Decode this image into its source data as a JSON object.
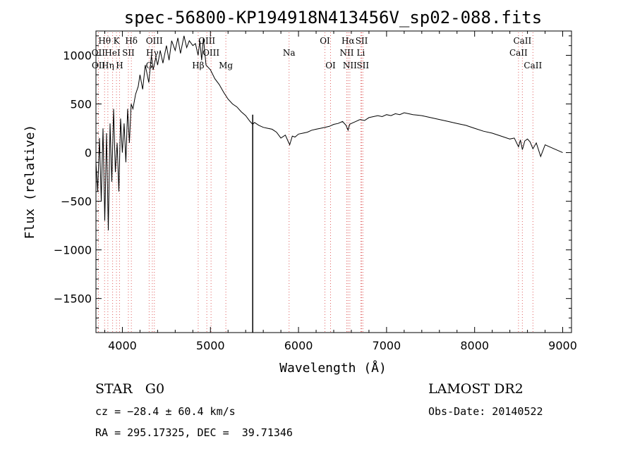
{
  "chart_data": {
    "type": "line",
    "title": "spec-56800-KP194918N413456V_sp02-088.fits",
    "xlabel": "Wavelength (Å)",
    "ylabel": "Flux (relative)",
    "xlim": [
      3700,
      9100
    ],
    "ylim": [
      -1850,
      1250
    ],
    "xticks": [
      4000,
      5000,
      6000,
      7000,
      8000,
      9000
    ],
    "yticks": [
      -1500,
      -1000,
      -500,
      0,
      500,
      1000
    ],
    "grid": false,
    "series": [
      {
        "x": [
          3700,
          3720,
          3740,
          3760,
          3780,
          3800,
          3820,
          3840,
          3860,
          3880,
          3900,
          3920,
          3940,
          3960,
          3980,
          4000,
          4020,
          4040,
          4060,
          4080,
          4100,
          4120,
          4150,
          4180,
          4200,
          4230,
          4260,
          4300,
          4330,
          4350,
          4380,
          4400,
          4430,
          4460,
          4500,
          4530,
          4560,
          4600,
          4630,
          4660,
          4700,
          4730,
          4760,
          4800,
          4830,
          4860,
          4880,
          4900,
          4920,
          4950,
          5000,
          5050,
          5100,
          5150,
          5200,
          5250,
          5300,
          5350,
          5400,
          5450,
          5480,
          5500,
          5550,
          5600,
          5650,
          5700,
          5750,
          5800,
          5850,
          5880,
          5900,
          5930,
          5960,
          6000,
          6050,
          6100,
          6150,
          6200,
          6250,
          6300,
          6350,
          6400,
          6450,
          6500,
          6540,
          6563,
          6580,
          6600,
          6650,
          6700,
          6750,
          6800,
          6850,
          6900,
          6950,
          7000,
          7050,
          7100,
          7150,
          7200,
          7250,
          7300,
          7350,
          7400,
          7450,
          7500,
          7600,
          7700,
          7800,
          7900,
          8000,
          8100,
          8200,
          8300,
          8400,
          8450,
          8498,
          8520,
          8542,
          8570,
          8600,
          8630,
          8662,
          8700,
          8750,
          8800,
          8850,
          8900,
          8950,
          9000
        ],
        "y": [
          -100,
          -400,
          150,
          -500,
          250,
          -700,
          200,
          -800,
          300,
          -300,
          450,
          -200,
          100,
          -400,
          350,
          0,
          300,
          -100,
          450,
          100,
          500,
          450,
          600,
          680,
          800,
          650,
          900,
          720,
          1000,
          850,
          980,
          900,
          1050,
          920,
          1100,
          950,
          1150,
          1050,
          1180,
          1020,
          1200,
          1080,
          1150,
          1100,
          1120,
          1000,
          1150,
          950,
          1180,
          900,
          850,
          760,
          700,
          620,
          550,
          500,
          470,
          420,
          380,
          320,
          290,
          310,
          280,
          260,
          250,
          240,
          210,
          150,
          180,
          120,
          80,
          170,
          160,
          190,
          200,
          210,
          230,
          240,
          250,
          260,
          270,
          290,
          300,
          320,
          280,
          230,
          290,
          300,
          320,
          340,
          330,
          360,
          370,
          380,
          370,
          390,
          380,
          400,
          390,
          410,
          400,
          390,
          385,
          380,
          370,
          360,
          340,
          320,
          300,
          280,
          250,
          220,
          200,
          170,
          140,
          150,
          60,
          130,
          30,
          120,
          140,
          110,
          40,
          100,
          -40,
          80,
          60,
          40,
          20,
          0
        ]
      }
    ],
    "annotations": [
      {
        "text": "Hθ",
        "x": 3798,
        "row": 0
      },
      {
        "text": "K",
        "x": 3933,
        "row": 0
      },
      {
        "text": "Hδ",
        "x": 4102,
        "row": 0
      },
      {
        "text": "OIII",
        "x": 4363,
        "row": 0
      },
      {
        "text": "OIII",
        "x": 4959,
        "row": 0
      },
      {
        "text": "OI",
        "x": 6300,
        "row": 0
      },
      {
        "text": "Hα",
        "x": 6563,
        "row": 0
      },
      {
        "text": "SII",
        "x": 6717,
        "row": 0
      },
      {
        "text": "CaII",
        "x": 8542,
        "row": 0
      },
      {
        "text": "OII",
        "x": 3727,
        "row": 1
      },
      {
        "text": "HeI",
        "x": 3889,
        "row": 1
      },
      {
        "text": "SII",
        "x": 4068,
        "row": 1
      },
      {
        "text": "Hγ",
        "x": 4340,
        "row": 1
      },
      {
        "text": "OIII",
        "x": 5007,
        "row": 1
      },
      {
        "text": "Na",
        "x": 5893,
        "row": 1
      },
      {
        "text": "NII",
        "x": 6548,
        "row": 1
      },
      {
        "text": "Li",
        "x": 6708,
        "row": 1
      },
      {
        "text": "CaII",
        "x": 8498,
        "row": 1
      },
      {
        "text": "OII",
        "x": 3729,
        "row": 2
      },
      {
        "text": "Hη",
        "x": 3835,
        "row": 2
      },
      {
        "text": "H",
        "x": 3968,
        "row": 2
      },
      {
        "text": "G",
        "x": 4304,
        "row": 2
      },
      {
        "text": "Hβ",
        "x": 4861,
        "row": 2
      },
      {
        "text": "Mg",
        "x": 5175,
        "row": 2
      },
      {
        "text": "OI",
        "x": 6364,
        "row": 2
      },
      {
        "text": "NII",
        "x": 6583,
        "row": 2
      },
      {
        "text": "SII",
        "x": 6731,
        "row": 2
      },
      {
        "text": "CaII",
        "x": 8662,
        "row": 2
      }
    ],
    "artifact_spike": {
      "x": 5480,
      "y_top": 390,
      "y_bottom": -1850
    }
  },
  "footer": {
    "class_label": "STAR   G0",
    "survey": "LAMOST DR2",
    "cz": "cz = −28.4 ± 60.4 km/s",
    "obs_date": "Obs-Date: 20140522",
    "radec": "RA = 295.17325, DEC =  39.71346"
  }
}
